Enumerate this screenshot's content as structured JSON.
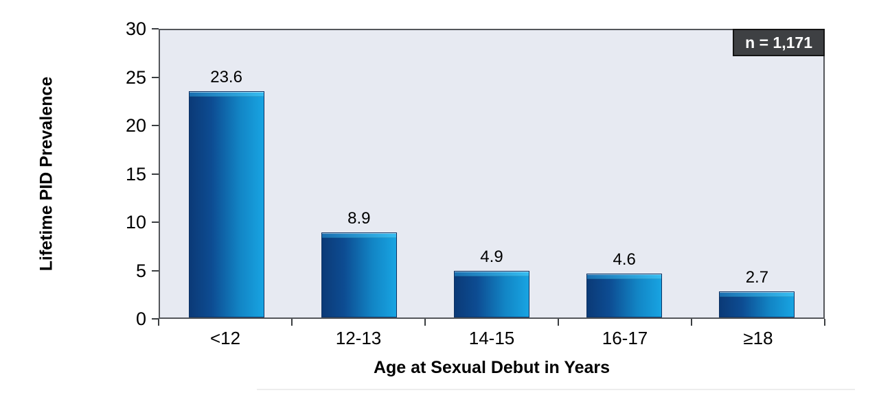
{
  "chart_data": {
    "type": "bar",
    "title": "",
    "categories": [
      "<12",
      "12-13",
      "14-15",
      "16-17",
      "≥18"
    ],
    "values": [
      23.6,
      8.9,
      4.9,
      4.6,
      2.7
    ],
    "value_labels": [
      "23.6",
      "8.9",
      "4.9",
      "4.6",
      "2.7"
    ],
    "xlabel": "Age at Sexual Debut in Years",
    "ylabel": "Lifetime PID Prevalence",
    "ylim": [
      0,
      30
    ],
    "yticks": [
      0,
      5,
      10,
      15,
      20,
      25,
      30
    ],
    "grid": "off",
    "legend": "none",
    "annotation": "n = 1,171",
    "colors": {
      "plot_background": "#e7eaf2",
      "plot_border": "#53565a",
      "bar_gradient_left": "#0b3a77",
      "bar_gradient_right": "#18a4e2",
      "bar_top_highlight": "#35bdf1",
      "bar_border": "#0d3162",
      "annotation_bg": "#3e4043",
      "annotation_border": "#141414",
      "annotation_text": "#ffffff",
      "text": "#000000"
    }
  }
}
